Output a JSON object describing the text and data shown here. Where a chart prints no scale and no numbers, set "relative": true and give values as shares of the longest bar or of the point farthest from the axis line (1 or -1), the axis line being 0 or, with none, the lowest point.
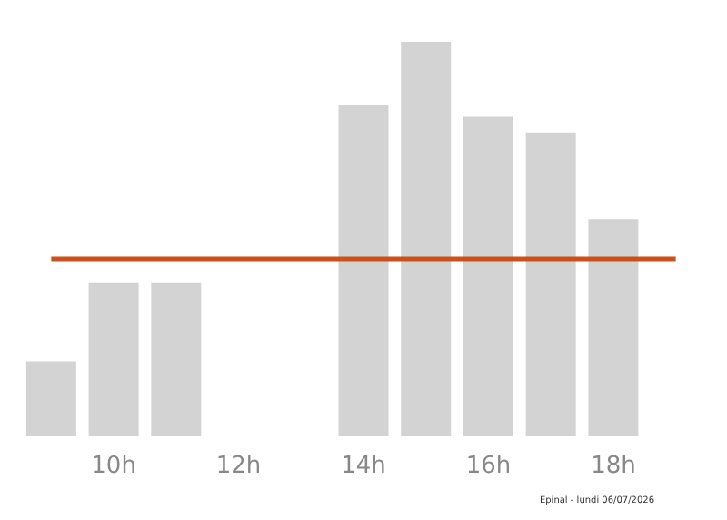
{
  "chart_data": {
    "type": "bar",
    "relative": true,
    "categories": [
      null,
      "10h",
      null,
      "12h",
      null,
      "14h",
      null,
      "16h",
      null,
      "18h",
      null
    ],
    "values": [
      0.19,
      0.39,
      0.39,
      0,
      0,
      0.84,
      1,
      0.81,
      0.77,
      0.55,
      0
    ],
    "color": "#d3d3d3",
    "ref_lines": [
      {
        "axis": "y",
        "value": 0.45,
        "color": "#c8521c"
      }
    ],
    "annotations": [
      "Epinal - lundi 06/07/2026"
    ],
    "grid": false
  }
}
